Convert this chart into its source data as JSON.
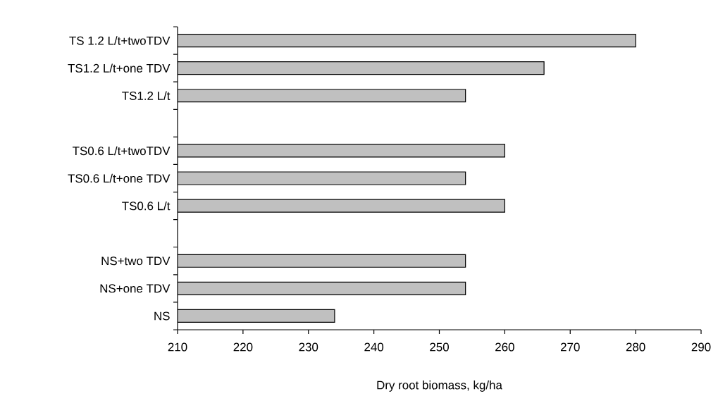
{
  "chart_data": {
    "type": "bar",
    "orientation": "horizontal",
    "xlabel": "Dry root biomass, kg/ha",
    "categories": [
      "TS 1.2 L/t+twoTDV",
      "TS1.2 L/t+one TDV",
      "TS1.2 L/t",
      null,
      "TS0.6 L/t+twoTDV",
      "TS0.6 L/t+one TDV",
      "TS0.6 L/t",
      null,
      "NS+two TDV",
      "NS+one TDV",
      "NS"
    ],
    "values": [
      280,
      266,
      254,
      null,
      260,
      254,
      260,
      null,
      254,
      254,
      234
    ],
    "color": "#c0c0c0",
    "xlim": [
      210,
      290
    ],
    "xticks": [
      210,
      220,
      230,
      240,
      250,
      260,
      270,
      280,
      290
    ],
    "grid": false
  }
}
